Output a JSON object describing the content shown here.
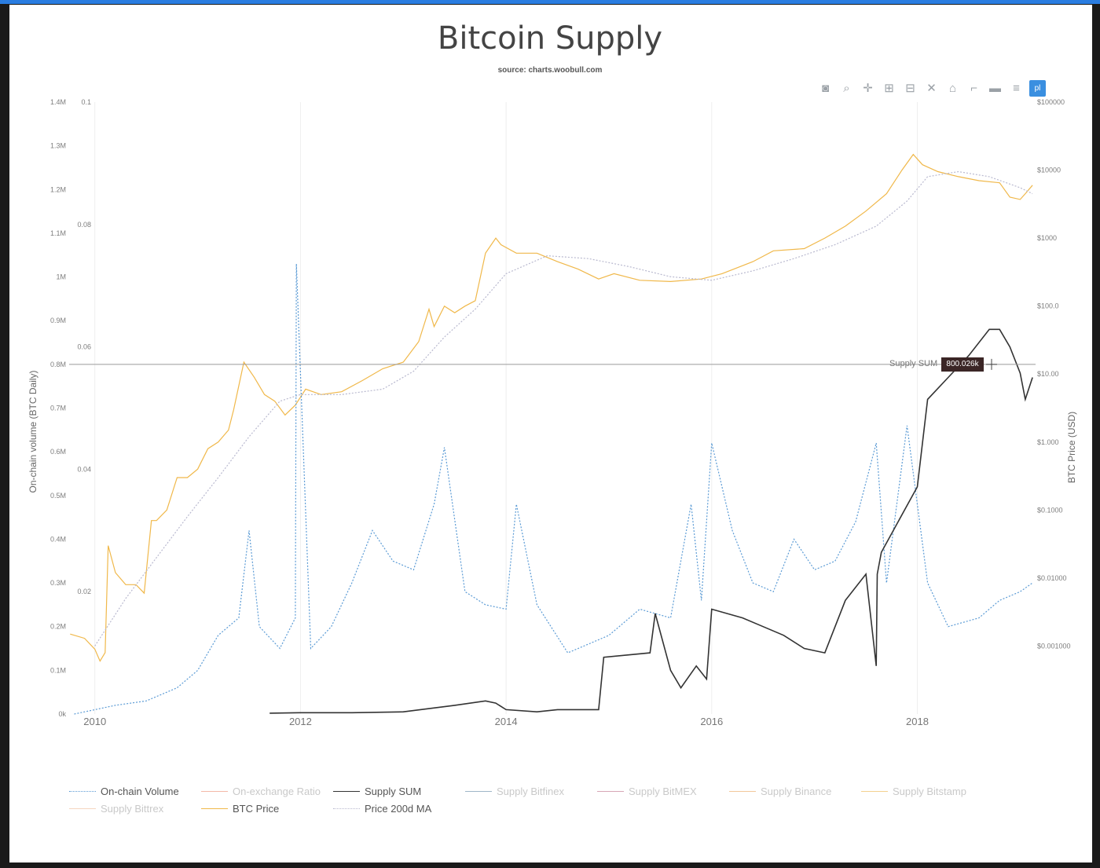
{
  "header": {
    "title": "Bitcoin Supply",
    "subtitle": "source: charts.woobull.com"
  },
  "toolbar": {
    "icons": [
      "camera-icon",
      "zoom-icon",
      "pan-icon",
      "zoom-in-icon",
      "zoom-out-icon",
      "autoscale-icon",
      "home-icon",
      "spike-lines-icon",
      "hover-closest-icon",
      "hover-compare-icon",
      "plotly-logo-icon"
    ],
    "glyphs": [
      "◙",
      "⌕",
      "✛",
      "⊞",
      "⊟",
      "✕",
      "⌂",
      "⌐",
      "▬",
      "≡",
      "pl"
    ]
  },
  "tooltip": {
    "label": "Supply SUM",
    "value": "800.026k"
  },
  "chart_data": {
    "type": "line",
    "title": "Bitcoin Supply",
    "subtitle": "source: charts.woobull.com",
    "x_ticks": [
      "2010",
      "2012",
      "2014",
      "2016",
      "2018"
    ],
    "x_range": [
      "2009-09",
      "2019-01"
    ],
    "y_left": {
      "label": "On-chain volume (BTC Daily)",
      "range": [
        0,
        1400000
      ],
      "ticks": [
        "0k",
        "0.1M",
        "0.2M",
        "0.3M",
        "0.4M",
        "0.5M",
        "0.6M",
        "0.7M",
        "0.8M",
        "0.9M",
        "1M",
        "1.1M",
        "1.2M",
        "1.3M",
        "1.4M"
      ]
    },
    "y_ratio": {
      "label": "",
      "range": [
        0,
        0.1
      ],
      "ticks": [
        "0.02",
        "0.04",
        "0.06",
        "0.08",
        "0.1"
      ]
    },
    "y_right": {
      "label": "BTC Price (USD)",
      "scale": "log",
      "range": [
        0.0001,
        100000
      ],
      "ticks": [
        "$0.001000",
        "$0.01000",
        "$0.1000",
        "$1.000",
        "$10.00",
        "$100.0",
        "$1000",
        "$10000",
        "$100000"
      ]
    },
    "hover_line_y": 800000,
    "legend_placement": "bottom",
    "legend": [
      {
        "name": "On-chain Volume",
        "color": "#5b9bd5",
        "dash": true,
        "faded": false
      },
      {
        "name": "On-exchange Ratio",
        "color": "#f4b8a8",
        "dash": false,
        "faded": true
      },
      {
        "name": "Supply SUM",
        "color": "#333333",
        "dash": false,
        "faded": false
      },
      {
        "name": "Supply Bitfinex",
        "color": "#9fb6c8",
        "dash": false,
        "faded": true
      },
      {
        "name": "Supply BitMEX",
        "color": "#d7a6b6",
        "dash": false,
        "faded": true
      },
      {
        "name": "Supply Binance",
        "color": "#f2c89a",
        "dash": false,
        "faded": true
      },
      {
        "name": "Supply Bitstamp",
        "color": "#f3d08f",
        "dash": false,
        "faded": true
      },
      {
        "name": "Supply Bittrex",
        "color": "#f6d6c0",
        "dash": false,
        "faded": true
      },
      {
        "name": "BTC Price",
        "color": "#f0b84a",
        "dash": false,
        "faded": false
      },
      {
        "name": "Price 200d MA",
        "color": "#b9b9cf",
        "dash": true,
        "faded": false
      }
    ],
    "series": [
      {
        "name": "BTC Price",
        "axis": "right",
        "color": "#f0b84a",
        "x": [
          2009.76,
          2009.9,
          2010.0,
          2010.05,
          2010.1,
          2010.13,
          2010.2,
          2010.3,
          2010.4,
          2010.48,
          2010.55,
          2010.6,
          2010.7,
          2010.8,
          2010.9,
          2011.0,
          2011.1,
          2011.2,
          2011.3,
          2011.35,
          2011.45,
          2011.55,
          2011.65,
          2011.75,
          2011.85,
          2011.95,
          2012.05,
          2012.2,
          2012.4,
          2012.6,
          2012.8,
          2013.0,
          2013.15,
          2013.25,
          2013.3,
          2013.4,
          2013.5,
          2013.6,
          2013.7,
          2013.8,
          2013.9,
          2013.95,
          2014.1,
          2014.3,
          2014.5,
          2014.7,
          2014.9,
          2015.05,
          2015.3,
          2015.6,
          2015.9,
          2016.1,
          2016.4,
          2016.6,
          2016.9,
          2017.1,
          2017.3,
          2017.5,
          2017.7,
          2017.85,
          2017.96,
          2018.05,
          2018.2,
          2018.4,
          2018.6,
          2018.8,
          2018.9,
          2019.0,
          2019.05,
          2019.12
        ],
        "y": [
          0.0015,
          0.0013,
          0.0009,
          0.0006,
          0.0008,
          0.03,
          0.012,
          0.008,
          0.008,
          0.006,
          0.07,
          0.07,
          0.1,
          0.3,
          0.3,
          0.4,
          0.8,
          1.0,
          1.5,
          3.0,
          15,
          9,
          5,
          4,
          2.5,
          3.5,
          6,
          5,
          5.5,
          8,
          12,
          15,
          30,
          90,
          50,
          100,
          80,
          100,
          120,
          600,
          1000,
          800,
          600,
          600,
          450,
          350,
          250,
          300,
          240,
          230,
          250,
          300,
          450,
          650,
          700,
          1000,
          1500,
          2500,
          4500,
          10000,
          17000,
          12000,
          9500,
          8000,
          7000,
          6500,
          4000,
          3700,
          4500,
          6000
        ]
      },
      {
        "name": "Price 200d MA",
        "axis": "right",
        "color": "#b9b9cf",
        "x": [
          2010.0,
          2010.3,
          2010.6,
          2010.9,
          2011.2,
          2011.5,
          2011.8,
          2012.0,
          2012.4,
          2012.8,
          2013.1,
          2013.4,
          2013.7,
          2014.0,
          2014.4,
          2014.8,
          2015.2,
          2015.6,
          2016.0,
          2016.4,
          2016.8,
          2017.2,
          2017.6,
          2017.9,
          2018.1,
          2018.4,
          2018.7,
          2019.0,
          2019.12
        ],
        "y": [
          0.001,
          0.005,
          0.02,
          0.08,
          0.3,
          1.2,
          4,
          5,
          5,
          6,
          11,
          35,
          90,
          300,
          550,
          500,
          380,
          270,
          240,
          330,
          500,
          800,
          1500,
          3500,
          8000,
          9500,
          8000,
          5500,
          4500
        ]
      },
      {
        "name": "On-chain Volume",
        "axis": "left",
        "color": "#5b9bd5",
        "x": [
          2009.8,
          2010.2,
          2010.5,
          2010.8,
          2011.0,
          2011.2,
          2011.4,
          2011.5,
          2011.6,
          2011.8,
          2011.95,
          2011.96,
          2012.1,
          2012.3,
          2012.5,
          2012.7,
          2012.9,
          2013.1,
          2013.3,
          2013.4,
          2013.6,
          2013.8,
          2014.0,
          2014.1,
          2014.3,
          2014.6,
          2014.8,
          2015.0,
          2015.3,
          2015.6,
          2015.8,
          2015.9,
          2016.0,
          2016.2,
          2016.4,
          2016.6,
          2016.8,
          2017.0,
          2017.2,
          2017.4,
          2017.6,
          2017.7,
          2017.9,
          2018.1,
          2018.3,
          2018.6,
          2018.8,
          2019.0,
          2019.12
        ],
        "y": [
          0,
          20000,
          30000,
          60000,
          100000,
          180000,
          220000,
          420000,
          200000,
          150000,
          220000,
          1030000,
          150000,
          200000,
          300000,
          420000,
          350000,
          330000,
          480000,
          610000,
          280000,
          250000,
          240000,
          480000,
          250000,
          140000,
          160000,
          180000,
          240000,
          220000,
          480000,
          260000,
          620000,
          420000,
          300000,
          280000,
          400000,
          330000,
          350000,
          440000,
          620000,
          300000,
          660000,
          300000,
          200000,
          220000,
          260000,
          280000,
          300000
        ]
      },
      {
        "name": "Supply SUM",
        "axis": "left",
        "color": "#333333",
        "x": [
          2011.7,
          2012.0,
          2012.5,
          2013.0,
          2013.5,
          2013.8,
          2013.9,
          2014.0,
          2014.3,
          2014.5,
          2014.9,
          2014.95,
          2015.4,
          2015.45,
          2015.6,
          2015.7,
          2015.85,
          2015.95,
          2016.0,
          2016.3,
          2016.5,
          2016.7,
          2016.9,
          2017.1,
          2017.3,
          2017.5,
          2017.6,
          2017.61,
          2017.65,
          2018.0,
          2018.1,
          2018.3,
          2018.5,
          2018.7,
          2018.8,
          2018.9,
          2019.0,
          2019.05,
          2019.12
        ],
        "y": [
          2000,
          3000,
          3000,
          5000,
          20000,
          30000,
          25000,
          10000,
          5000,
          10000,
          10000,
          130000,
          140000,
          230000,
          100000,
          60000,
          110000,
          80000,
          240000,
          220000,
          200000,
          180000,
          150000,
          140000,
          260000,
          320000,
          110000,
          320000,
          370000,
          520000,
          720000,
          770000,
          820000,
          880000,
          880000,
          840000,
          780000,
          720000,
          770000
        ]
      }
    ]
  }
}
